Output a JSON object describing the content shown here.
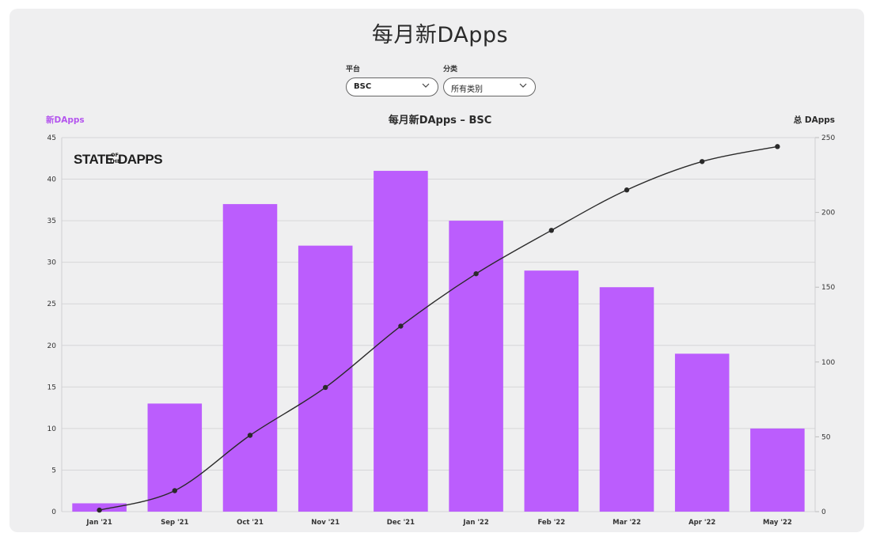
{
  "page": {
    "title": "每月新DApps"
  },
  "filters": {
    "platform": {
      "label": "平台",
      "value": "BSC"
    },
    "category": {
      "label": "分类",
      "value": "所有类别"
    }
  },
  "watermark": "STATE OF THE DAPPS",
  "colors": {
    "bar": "#bb5dfd",
    "line": "#2a2a2a",
    "left_axis_title": "#b455ee",
    "background": "#efeff0"
  },
  "chart_data": {
    "type": "bar",
    "title": "每月新DApps – BSC",
    "ylabel": "新DApps",
    "y2label": "总 DApps",
    "categories": [
      "Jan '21",
      "Sep '21",
      "Oct '21",
      "Nov '21",
      "Dec '21",
      "Jan '22",
      "Feb '22",
      "Mar '22",
      "Apr '22",
      "May '22"
    ],
    "series": [
      {
        "name": "新DApps",
        "type": "bar",
        "axis": "left",
        "values": [
          1,
          13,
          37,
          32,
          41,
          35,
          29,
          27,
          19,
          10
        ]
      },
      {
        "name": "总 DApps",
        "type": "line",
        "axis": "right",
        "values": [
          1,
          14,
          51,
          83,
          124,
          159,
          188,
          215,
          234,
          244
        ]
      }
    ],
    "ylim": [
      0,
      45
    ],
    "yticks": [
      0,
      5,
      10,
      15,
      20,
      25,
      30,
      35,
      40,
      45
    ],
    "y2lim": [
      0,
      250
    ],
    "y2ticks": [
      0,
      50,
      100,
      150,
      200,
      250
    ],
    "grid": true,
    "legend": "none"
  }
}
